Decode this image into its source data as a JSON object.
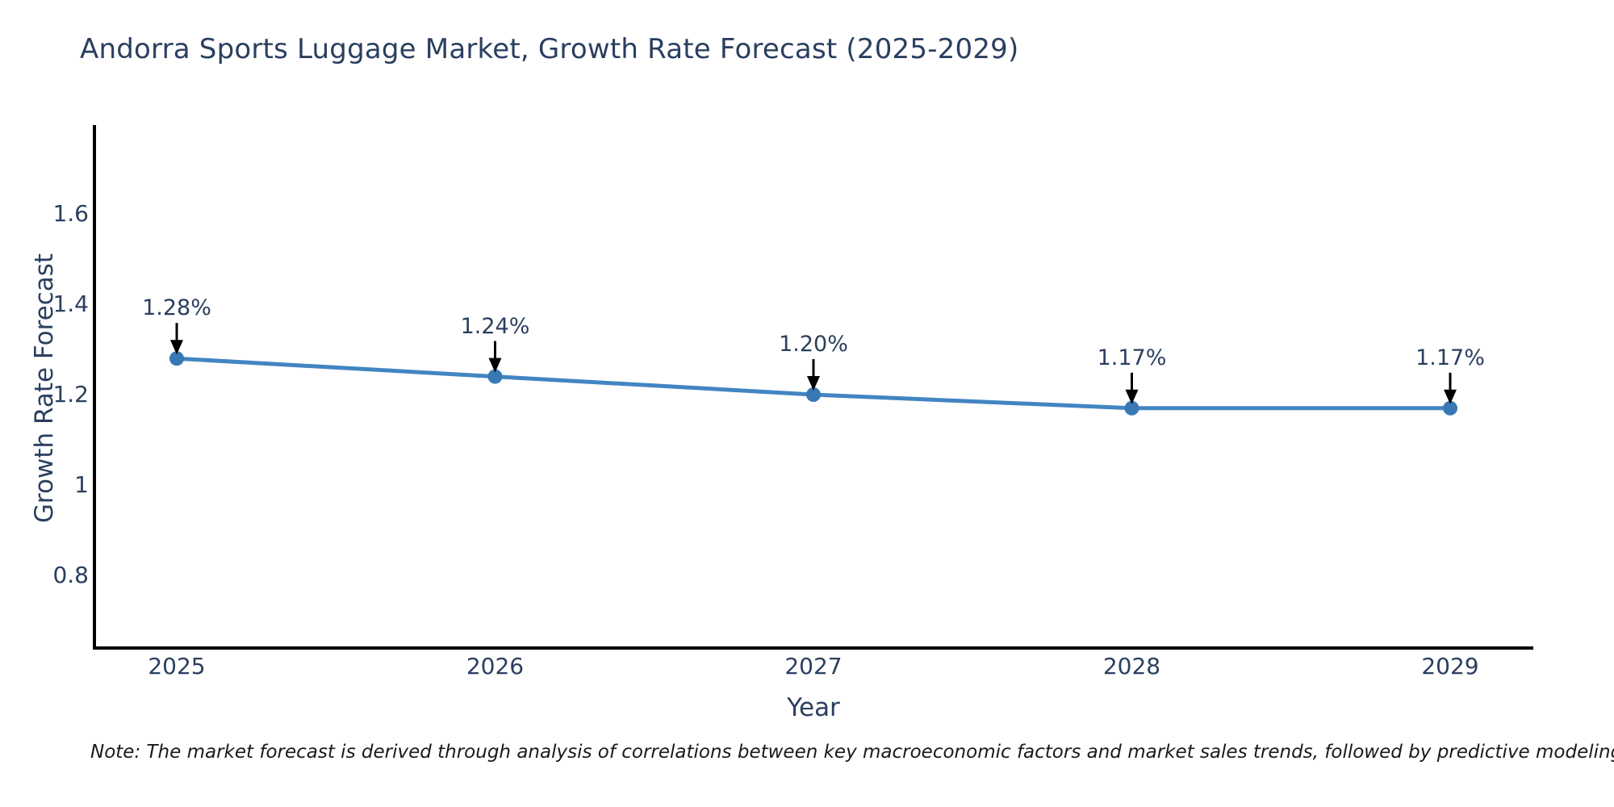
{
  "page": {
    "background": "#ffffff"
  },
  "chart_data": {
    "type": "line",
    "title": "Andorra Sports Luggage Market, Growth Rate Forecast (2025-2029)",
    "xlabel": "Year",
    "ylabel": "Growth Rate Forecast",
    "categories": [
      "2025",
      "2026",
      "2027",
      "2028",
      "2029"
    ],
    "series": [
      {
        "name": "Growth Rate Forecast",
        "values": [
          1.28,
          1.24,
          1.2,
          1.17,
          1.17
        ]
      }
    ],
    "point_labels": [
      "1.28%",
      "1.24%",
      "1.20%",
      "1.17%",
      "1.17%"
    ],
    "y_ticks": {
      "values": [
        1.6,
        1.4,
        1.2,
        1.0,
        0.8
      ],
      "labels": [
        "1.6",
        "1.4",
        "1.2",
        "1",
        "0.8"
      ]
    },
    "ylim": [
      0.64,
      1.8
    ],
    "grid": false,
    "legend": "none",
    "colors": {
      "line": "#4285c2",
      "marker": "#3878b4",
      "axis": "#000000",
      "text": "#2a3f5f",
      "annotation_arrow": "#000000"
    }
  },
  "note": {
    "text": "Note: The market forecast is derived through analysis of correlations between key macroeconomic factors and market sales trends, followed by predictive modeling to project future sales",
    "color": "#1a1a1a"
  }
}
